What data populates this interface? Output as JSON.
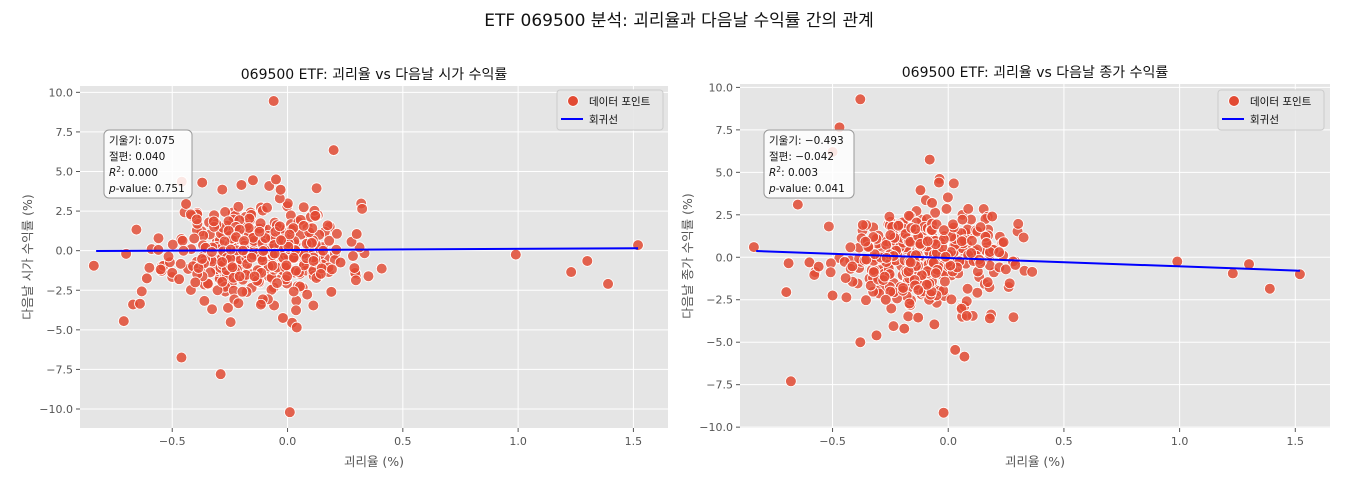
{
  "figure": {
    "title": "ETF 069500 분석: 괴리율과 다음날 수익률 간의 관계"
  },
  "colors": {
    "panel_bg": "#e5e5e5",
    "grid": "#ffffff",
    "point": "#e24a33",
    "point_edge": "#ffffff",
    "line": "#0000ff",
    "tick_text": "#555555"
  },
  "chart_data": [
    {
      "type": "scatter",
      "title": "069500 ETF: 괴리율 vs 다음날 시가 수익률",
      "xlabel": "괴리율 (%)",
      "ylabel": "다음날 시가 수익률 (%)",
      "xlim": [
        -0.9,
        1.65
      ],
      "ylim": [
        -11.2,
        10.4
      ],
      "xticks": [
        -0.5,
        0.0,
        0.5,
        1.0,
        1.5
      ],
      "xtick_labels": [
        "−0.5",
        "0.0",
        "0.5",
        "1.0",
        "1.5"
      ],
      "yticks": [
        -10,
        -7.5,
        -5,
        -2.5,
        0,
        2.5,
        5,
        7.5,
        10
      ],
      "ytick_labels": [
        "−10.0",
        "−7.5",
        "−5.0",
        "−2.5",
        "0.0",
        "2.5",
        "5.0",
        "7.5",
        "10.0"
      ],
      "grid": true,
      "legend": {
        "position": "top-right",
        "entries": [
          "데이터 포인트",
          "회귀선"
        ]
      },
      "stats": {
        "slope_label": "기울기: 0.075",
        "intercept_label": "절편: 0.040",
        "r2_value": ": 0.000",
        "p_label": "-value: 0.751"
      },
      "regression": {
        "slope": 0.075,
        "intercept": 0.04,
        "x_range": [
          -0.83,
          1.52
        ]
      },
      "cluster": {
        "center_x": -0.12,
        "center_y": 0.0,
        "spread_x": 0.19,
        "spread_y": 1.5,
        "count": 420,
        "seed": 11
      },
      "points": [
        [
          -0.84,
          -0.95
        ],
        [
          -0.71,
          -4.45
        ],
        [
          -0.7,
          -0.2
        ],
        [
          -0.67,
          -3.4
        ],
        [
          -0.64,
          -3.35
        ],
        [
          -0.61,
          -1.75
        ],
        [
          -0.56,
          0.05
        ],
        [
          -0.5,
          -1.4
        ],
        [
          -0.47,
          -1.8
        ],
        [
          -0.46,
          -6.75
        ],
        [
          -0.37,
          4.3
        ],
        [
          -0.32,
          1.85
        ],
        [
          -0.29,
          -7.8
        ],
        [
          -0.2,
          4.15
        ],
        [
          -0.15,
          4.45
        ],
        [
          -0.06,
          9.45
        ],
        [
          -0.05,
          4.5
        ],
        [
          -0.03,
          3.85
        ],
        [
          0.01,
          -10.2
        ],
        [
          0.02,
          -4.55
        ],
        [
          0.04,
          -4.85
        ],
        [
          0.2,
          6.35
        ],
        [
          0.19,
          -2.6
        ],
        [
          0.23,
          -0.75
        ],
        [
          0.29,
          -1.1
        ],
        [
          0.3,
          1.05
        ],
        [
          0.99,
          -0.25
        ],
        [
          1.23,
          -1.35
        ],
        [
          1.3,
          -0.65
        ],
        [
          1.39,
          -2.1
        ],
        [
          1.52,
          0.35
        ],
        [
          -0.02,
          -4.25
        ],
        [
          0.12,
          2.2
        ],
        [
          -0.4,
          -2.0
        ],
        [
          -0.44,
          2.95
        ]
      ]
    },
    {
      "type": "scatter",
      "title": "069500 ETF: 괴리율 vs 다음날 종가 수익률",
      "xlabel": "괴리율 (%)",
      "ylabel": "다음날 종가 수익률 (%)",
      "xlim": [
        -0.9,
        1.65
      ],
      "ylim": [
        -10.05,
        10.2
      ],
      "xticks": [
        -0.5,
        0.0,
        0.5,
        1.0,
        1.5
      ],
      "xtick_labels": [
        "−0.5",
        "0.0",
        "0.5",
        "1.0",
        "1.5"
      ],
      "yticks": [
        -10,
        -7.5,
        -5,
        -2.5,
        0,
        2.5,
        5,
        7.5,
        10
      ],
      "ytick_labels": [
        "−10.0",
        "−7.5",
        "−5.0",
        "−2.5",
        "0.0",
        "2.5",
        "5.0",
        "7.5",
        "10.0"
      ],
      "grid": true,
      "legend": {
        "position": "top-right",
        "entries": [
          "데이터 포인트",
          "회귀선"
        ]
      },
      "stats": {
        "slope_label": "기울기: −0.493",
        "intercept_label": "절편: −0.042",
        "r2_value": ": 0.003",
        "p_label": "-value: 0.041"
      },
      "regression": {
        "slope": -0.493,
        "intercept": -0.042,
        "x_range": [
          -0.83,
          1.52
        ]
      },
      "cluster": {
        "center_x": -0.12,
        "center_y": 0.0,
        "spread_x": 0.17,
        "spread_y": 1.35,
        "count": 420,
        "seed": 29
      },
      "points": [
        [
          -0.84,
          0.6
        ],
        [
          -0.7,
          -2.05
        ],
        [
          -0.69,
          -0.35
        ],
        [
          -0.68,
          -7.3
        ],
        [
          -0.65,
          3.1
        ],
        [
          -0.6,
          -0.3
        ],
        [
          -0.56,
          -0.55
        ],
        [
          -0.5,
          -2.25
        ],
        [
          -0.5,
          6.2
        ],
        [
          -0.47,
          7.65
        ],
        [
          -0.38,
          9.3
        ],
        [
          -0.38,
          -5.0
        ],
        [
          -0.31,
          -4.6
        ],
        [
          -0.19,
          -4.2
        ],
        [
          -0.13,
          -3.55
        ],
        [
          -0.08,
          5.75
        ],
        [
          -0.07,
          3.2
        ],
        [
          -0.06,
          -3.95
        ],
        [
          -0.04,
          4.4
        ],
        [
          -0.02,
          -9.15
        ],
        [
          0.03,
          -5.45
        ],
        [
          0.07,
          -5.85
        ],
        [
          0.08,
          -3.45
        ],
        [
          0.18,
          -3.6
        ],
        [
          0.19,
          2.4
        ],
        [
          0.28,
          -0.25
        ],
        [
          0.29,
          -0.45
        ],
        [
          0.99,
          -0.25
        ],
        [
          1.23,
          -0.95
        ],
        [
          1.3,
          -0.4
        ],
        [
          1.39,
          -1.85
        ],
        [
          1.52,
          -1.0
        ],
        [
          -0.12,
          3.95
        ],
        [
          -0.27,
          -2.5
        ],
        [
          0.22,
          0.3
        ]
      ]
    }
  ]
}
